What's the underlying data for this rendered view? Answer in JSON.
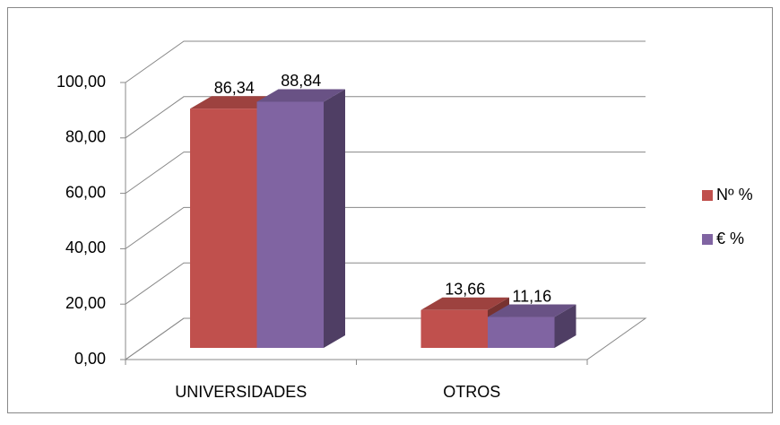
{
  "chart_data": {
    "type": "bar3d",
    "categories": [
      "UNIVERSIDADES",
      "OTROS"
    ],
    "series": [
      {
        "name": "Nº %",
        "color": "#c0504d",
        "values": [
          86.34,
          13.66
        ],
        "value_labels": [
          "86,34",
          "13,66"
        ]
      },
      {
        "name": "€ %",
        "color": "#8064a2",
        "values": [
          88.84,
          11.16
        ],
        "value_labels": [
          "88,84",
          "11,16"
        ]
      }
    ],
    "ylim": [
      0,
      100
    ],
    "yticks": [
      {
        "value": 0,
        "label": "0,00"
      },
      {
        "value": 20,
        "label": "20,00"
      },
      {
        "value": 40,
        "label": "40,00"
      },
      {
        "value": 60,
        "label": "60,00"
      },
      {
        "value": 80,
        "label": "80,00"
      },
      {
        "value": 100,
        "label": "100,00"
      }
    ],
    "grid": true,
    "legend": "right"
  }
}
